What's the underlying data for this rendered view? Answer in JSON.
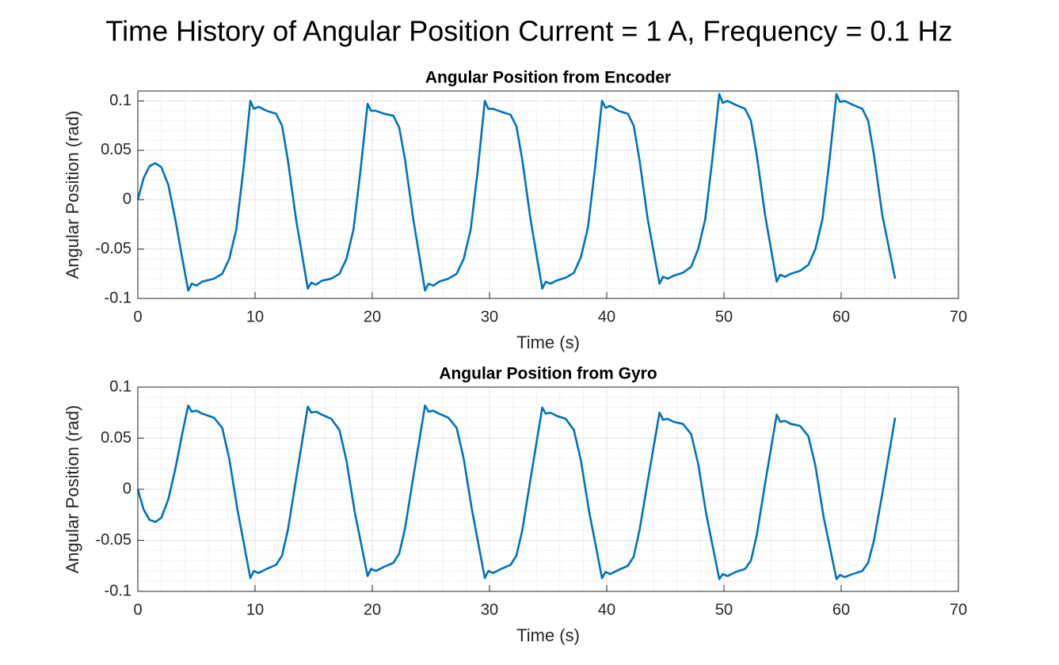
{
  "title": "Time History of Angular Position Current = 1 A, Frequency = 0.1 Hz",
  "chart_data": [
    {
      "type": "line",
      "title": "Angular Position from Encoder",
      "xlabel": "Time (s)",
      "ylabel": "Angular Position (rad)",
      "color": "#0072bd",
      "grid": true,
      "minor_grid": true,
      "xlim": [
        0,
        70
      ],
      "xticks": [
        0,
        10,
        20,
        30,
        40,
        50,
        60,
        70
      ],
      "ylim": [
        -0.1,
        0.11
      ],
      "yticks": [
        -0.1,
        -0.05,
        0,
        0.05,
        0.1
      ],
      "x": [
        0,
        0.5,
        1,
        1.5,
        2,
        2.6,
        3.2,
        3.8,
        4.3,
        4.6,
        5,
        5.5,
        6.5,
        7.2,
        7.8,
        8.4,
        9,
        9.6,
        9.9,
        10.3,
        11,
        11.8,
        12.3,
        12.8,
        13.5,
        14.5,
        14.8,
        15.2,
        15.7,
        16.5,
        17.2,
        17.8,
        18.4,
        19,
        19.6,
        19.9,
        20.3,
        21,
        21.8,
        22.3,
        22.8,
        23.5,
        24.5,
        24.8,
        25.2,
        25.7,
        26.5,
        27.2,
        27.8,
        28.4,
        29,
        29.6,
        29.9,
        30.3,
        31,
        31.8,
        32.3,
        32.8,
        33.5,
        34.5,
        34.8,
        35.2,
        35.7,
        36.5,
        37.2,
        37.8,
        38.4,
        39,
        39.6,
        39.9,
        40.3,
        41,
        41.8,
        42.3,
        42.8,
        43.5,
        44.5,
        44.8,
        45.2,
        45.7,
        46.5,
        47.2,
        47.8,
        48.4,
        49,
        49.6,
        49.9,
        50.3,
        51,
        51.8,
        52.3,
        52.8,
        53.5,
        54.5,
        54.8,
        55.2,
        55.7,
        56.5,
        57.2,
        57.8,
        58.4,
        59,
        59.6,
        59.9,
        60.3,
        61,
        61.8,
        62.3,
        62.8,
        63.5,
        64.6
      ],
      "values": [
        0,
        0.022,
        0.034,
        0.037,
        0.033,
        0.015,
        -0.02,
        -0.06,
        -0.092,
        -0.085,
        -0.087,
        -0.083,
        -0.08,
        -0.075,
        -0.06,
        -0.03,
        0.03,
        0.1,
        0.092,
        0.094,
        0.09,
        0.087,
        0.075,
        0.04,
        -0.02,
        -0.09,
        -0.084,
        -0.086,
        -0.082,
        -0.08,
        -0.075,
        -0.06,
        -0.03,
        0.03,
        0.097,
        0.09,
        0.09,
        0.087,
        0.085,
        0.073,
        0.04,
        -0.02,
        -0.092,
        -0.085,
        -0.087,
        -0.083,
        -0.08,
        -0.075,
        -0.06,
        -0.03,
        0.03,
        0.1,
        0.092,
        0.092,
        0.089,
        0.086,
        0.074,
        0.04,
        -0.02,
        -0.09,
        -0.083,
        -0.085,
        -0.082,
        -0.079,
        -0.074,
        -0.058,
        -0.028,
        0.032,
        0.1,
        0.093,
        0.095,
        0.09,
        0.087,
        0.075,
        0.04,
        -0.02,
        -0.085,
        -0.078,
        -0.08,
        -0.077,
        -0.074,
        -0.068,
        -0.05,
        -0.02,
        0.04,
        0.107,
        0.098,
        0.1,
        0.096,
        0.092,
        0.08,
        0.045,
        -0.015,
        -0.083,
        -0.076,
        -0.078,
        -0.075,
        -0.072,
        -0.066,
        -0.05,
        -0.02,
        0.04,
        0.107,
        0.099,
        0.1,
        0.096,
        0.092,
        0.08,
        0.045,
        -0.015,
        -0.08
      ]
    },
    {
      "type": "line",
      "title": "Angular Position from Gyro",
      "xlabel": "Time (s)",
      "ylabel": "Angular Position (rad)",
      "color": "#0072bd",
      "grid": true,
      "minor_grid": true,
      "xlim": [
        0,
        70
      ],
      "xticks": [
        0,
        10,
        20,
        30,
        40,
        50,
        60,
        70
      ],
      "ylim": [
        -0.1,
        0.1
      ],
      "yticks": [
        -0.1,
        -0.05,
        0,
        0.05,
        0.1
      ],
      "x": [
        0,
        0.5,
        1,
        1.5,
        2,
        2.6,
        3.2,
        3.8,
        4.3,
        4.6,
        5,
        5.5,
        6.5,
        7.2,
        7.8,
        8.5,
        9.6,
        9.9,
        10.3,
        11,
        11.8,
        12.3,
        12.8,
        13.5,
        14.5,
        14.8,
        15.2,
        15.7,
        16.5,
        17.2,
        17.8,
        18.5,
        19.6,
        19.9,
        20.3,
        21,
        21.8,
        22.3,
        22.8,
        23.5,
        24.5,
        24.8,
        25.2,
        25.7,
        26.5,
        27.2,
        27.8,
        28.5,
        29.6,
        29.9,
        30.3,
        31,
        31.8,
        32.3,
        32.8,
        33.5,
        34.5,
        34.8,
        35.2,
        35.7,
        36.5,
        37.2,
        37.8,
        38.5,
        39.6,
        39.9,
        40.3,
        41,
        41.8,
        42.3,
        42.8,
        43.5,
        44.5,
        44.8,
        45.2,
        45.7,
        46.5,
        47.2,
        47.8,
        48.5,
        49.6,
        49.9,
        50.3,
        51,
        51.8,
        52.3,
        52.8,
        53.5,
        54.5,
        54.8,
        55.2,
        55.7,
        56.5,
        57.2,
        57.8,
        58.5,
        59.6,
        59.9,
        60.3,
        61,
        61.8,
        62.3,
        62.8,
        63.5,
        64.6
      ],
      "values": [
        0,
        -0.02,
        -0.03,
        -0.032,
        -0.028,
        -0.01,
        0.02,
        0.055,
        0.082,
        0.076,
        0.077,
        0.074,
        0.07,
        0.06,
        0.03,
        -0.02,
        -0.087,
        -0.08,
        -0.082,
        -0.078,
        -0.074,
        -0.065,
        -0.04,
        0.01,
        0.081,
        0.075,
        0.076,
        0.073,
        0.069,
        0.058,
        0.028,
        -0.022,
        -0.085,
        -0.078,
        -0.08,
        -0.076,
        -0.072,
        -0.063,
        -0.038,
        0.012,
        0.082,
        0.076,
        0.077,
        0.074,
        0.07,
        0.06,
        0.03,
        -0.02,
        -0.087,
        -0.08,
        -0.082,
        -0.078,
        -0.074,
        -0.065,
        -0.04,
        0.01,
        0.08,
        0.074,
        0.075,
        0.072,
        0.069,
        0.058,
        0.028,
        -0.022,
        -0.087,
        -0.081,
        -0.083,
        -0.079,
        -0.075,
        -0.066,
        -0.04,
        0.008,
        0.075,
        0.068,
        0.069,
        0.066,
        0.064,
        0.054,
        0.025,
        -0.025,
        -0.088,
        -0.083,
        -0.085,
        -0.081,
        -0.078,
        -0.07,
        -0.045,
        0.005,
        0.073,
        0.066,
        0.067,
        0.064,
        0.062,
        0.052,
        0.023,
        -0.027,
        -0.088,
        -0.084,
        -0.086,
        -0.083,
        -0.08,
        -0.072,
        -0.05,
        -0.005,
        0.07
      ]
    }
  ]
}
